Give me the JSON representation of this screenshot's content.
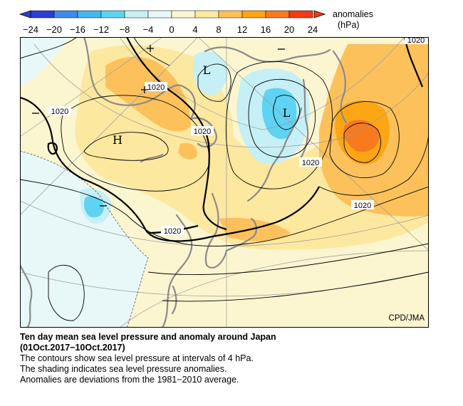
{
  "colorbar": {
    "title_line1": "anomalies",
    "title_line2": "(hPa)",
    "ticks": [
      "−24",
      "−20",
      "−16",
      "−12",
      "−8",
      "−4",
      "0",
      "4",
      "8",
      "12",
      "16",
      "20",
      "24"
    ],
    "colors": [
      "#2a3fd6",
      "#3f8ae6",
      "#46b7ee",
      "#5fd3f2",
      "#c6f0f6",
      "#e8f7f7",
      "#fbf6d0",
      "#fde8a0",
      "#fdc15c",
      "#fca614",
      "#f77a1e",
      "#ef3b16"
    ]
  },
  "map": {
    "credit": "CPD/JMA",
    "contour_labels": [
      "1020",
      "1020",
      "1020",
      "1020",
      "1020",
      "1020",
      "1020"
    ],
    "centers": [
      "H",
      "L",
      "L"
    ]
  },
  "caption": {
    "title_line1": "Ten day mean sea level pressure and anomaly around Japan",
    "title_line2": "(01Oct.2017−10Oct.2017)",
    "line1": "The contours show sea level pressure at intervals of 4 hPa.",
    "line2": "The shading indicates sea level pressure anomalies.",
    "line3": "Anomalies are deviations from the 1981−2010 average."
  }
}
